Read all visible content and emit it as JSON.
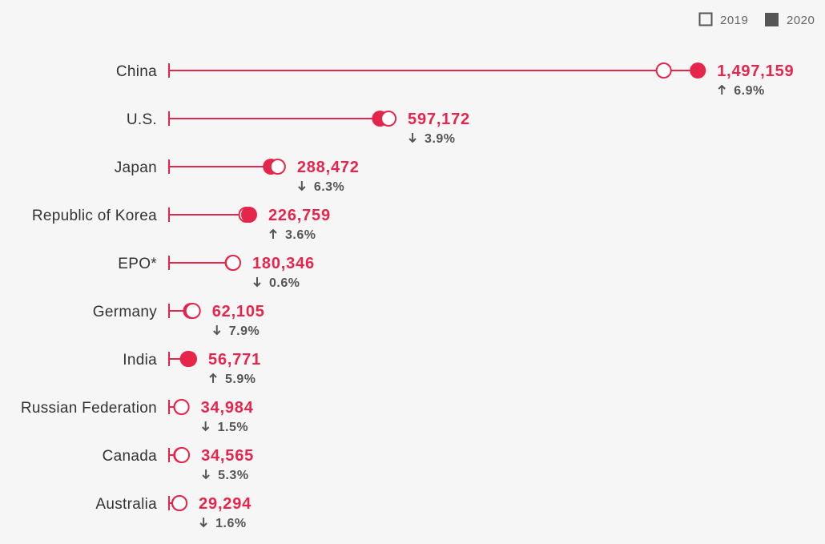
{
  "chart_data": {
    "type": "dot",
    "legend": {
      "placement": "top-right",
      "items": [
        {
          "label": "2019",
          "style": "hollow"
        },
        {
          "label": "2020",
          "style": "filled"
        }
      ]
    },
    "colors": {
      "accent": "#e5254c",
      "legend_filled": "#555555",
      "legend_hollow": "#555555",
      "change_text": "#555555",
      "label_text": "#333333"
    },
    "x_range": [
      0,
      1650000
    ],
    "rows": [
      {
        "country": "China",
        "value_2019": 1400661,
        "value_2020": 1497159,
        "value_label": "1,497,159",
        "change": "6.9%",
        "direction": "up"
      },
      {
        "country": "U.S.",
        "value_2019": 621453,
        "value_2020": 597172,
        "value_label": "597,172",
        "change": "3.9%",
        "direction": "down"
      },
      {
        "country": "Japan",
        "value_2019": 307969,
        "value_2020": 288472,
        "value_label": "288,472",
        "change": "6.3%",
        "direction": "down"
      },
      {
        "country": "Republic of Korea",
        "value_2019": 218975,
        "value_2020": 226759,
        "value_label": "226,759",
        "change": "3.6%",
        "direction": "up"
      },
      {
        "country": "EPO*",
        "value_2019": 181406,
        "value_2020": 180346,
        "value_label": "180,346",
        "change": "0.6%",
        "direction": "down"
      },
      {
        "country": "Germany",
        "value_2019": 67434,
        "value_2020": 62105,
        "value_label": "62,105",
        "change": "7.9%",
        "direction": "down"
      },
      {
        "country": "India",
        "value_2019": 53627,
        "value_2020": 56771,
        "value_label": "56,771",
        "change": "5.9%",
        "direction": "up"
      },
      {
        "country": "Russian Federation",
        "value_2019": 35511,
        "value_2020": 34984,
        "value_label": "34,984",
        "change": "1.5%",
        "direction": "down"
      },
      {
        "country": "Canada",
        "value_2019": 36488,
        "value_2020": 34565,
        "value_label": "34,565",
        "change": "5.3%",
        "direction": "down"
      },
      {
        "country": "Australia",
        "value_2019": 29758,
        "value_2020": 29294,
        "value_label": "29,294",
        "change": "1.6%",
        "direction": "down"
      }
    ]
  }
}
